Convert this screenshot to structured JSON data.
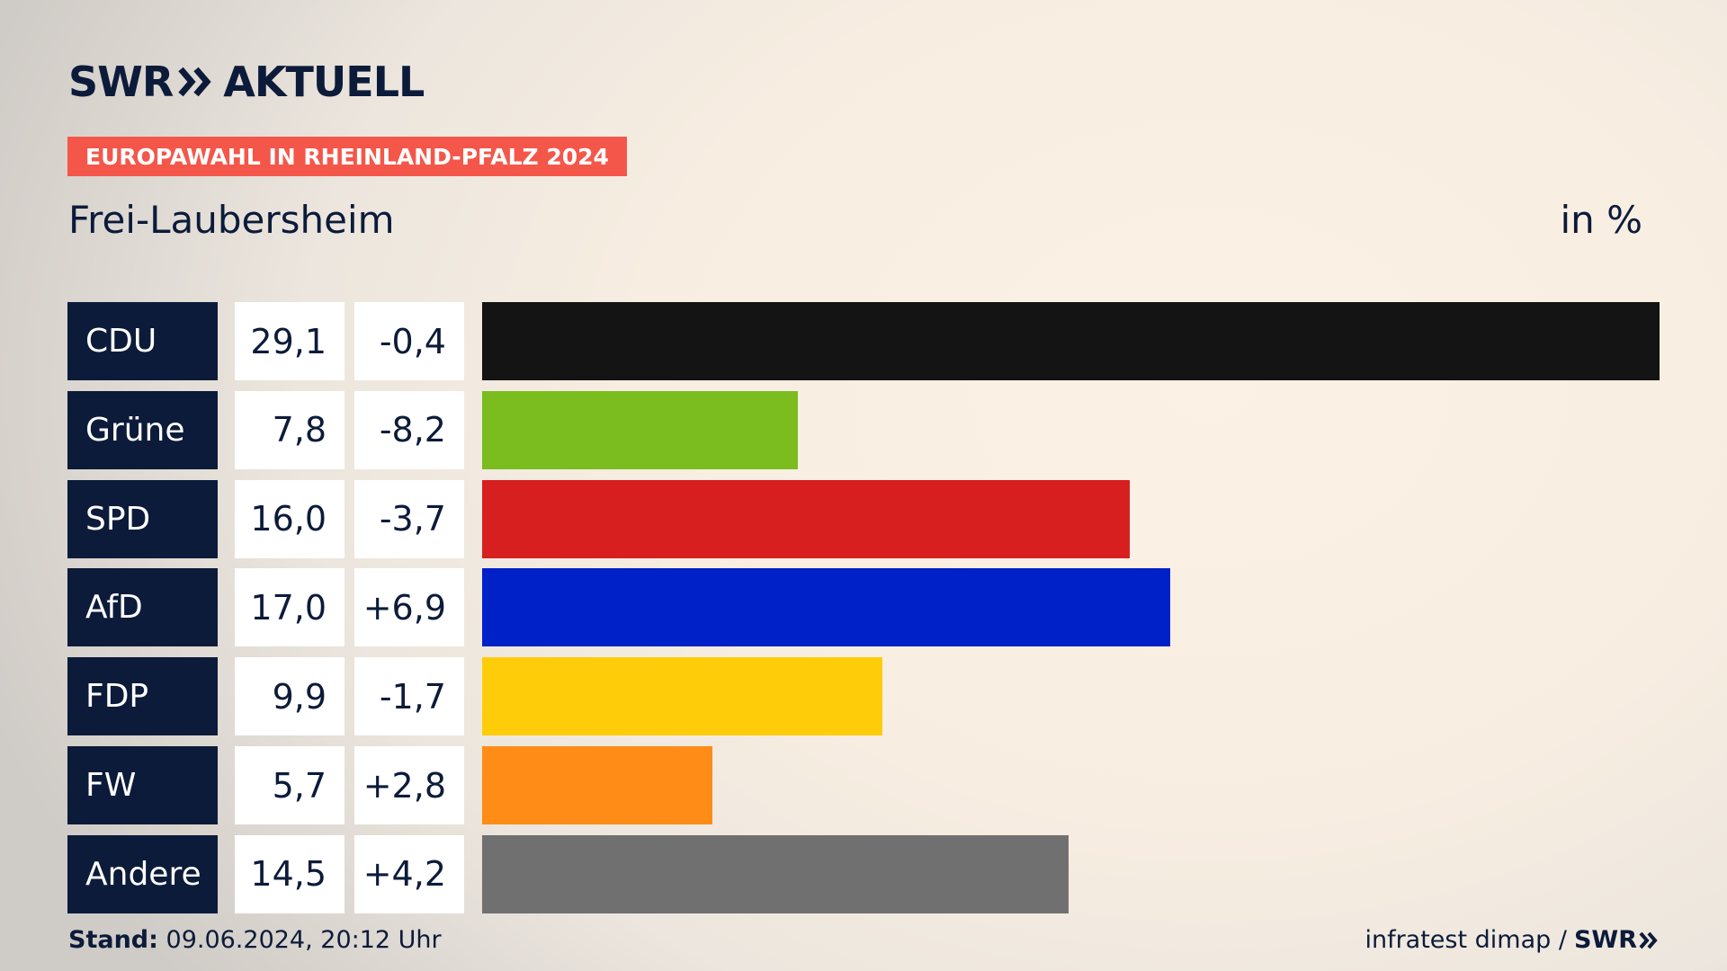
{
  "header": {
    "logo_left": "SWR",
    "logo_right": "AKTUELL",
    "badge": "EUROPAWAHL IN RHEINLAND-PFALZ 2024",
    "place": "Frei-Laubersheim",
    "unit": "in %"
  },
  "chart_data": {
    "type": "bar",
    "orientation": "horizontal",
    "categories": [
      "CDU",
      "Grüne",
      "SPD",
      "AfD",
      "FDP",
      "FW",
      "Andere"
    ],
    "values": [
      29.1,
      7.8,
      16.0,
      17.0,
      9.9,
      5.7,
      14.5
    ],
    "values_label": [
      "29,1",
      "7,8",
      "16,0",
      "17,0",
      "9,9",
      "5,7",
      "14,5"
    ],
    "changes": [
      -0.4,
      -8.2,
      -3.7,
      6.9,
      -1.7,
      2.8,
      4.2
    ],
    "changes_label": [
      "-0,4",
      "-8,2",
      "-3,7",
      "+6,9",
      "-1,7",
      "+2,8",
      "+4,2"
    ],
    "colors": [
      "#141414",
      "#7bbd1f",
      "#d71f1f",
      "#0021c8",
      "#ffcc0a",
      "#ff8c17",
      "#707070"
    ],
    "xlim": [
      0,
      29.1
    ]
  },
  "footer": {
    "stand_label": "Stand:",
    "stand_value": "09.06.2024, 20:12 Uhr",
    "source": "infratest dimap /",
    "source_logo": "SWR"
  }
}
